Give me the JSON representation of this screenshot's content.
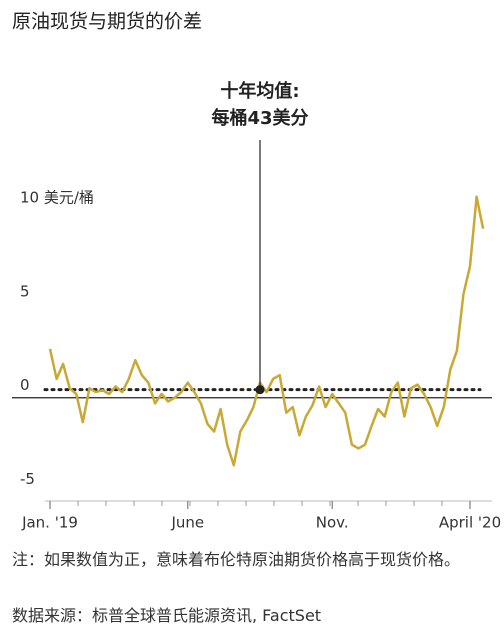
{
  "chart_data": {
    "type": "line",
    "title": "原油现货与期货的价差",
    "categories": [
      "Jan. '19",
      null,
      null,
      null,
      null,
      null,
      null,
      null,
      null,
      null,
      null,
      null,
      null,
      null,
      null,
      null,
      null,
      null,
      null,
      null,
      null,
      "June",
      null,
      null,
      null,
      null,
      null,
      null,
      null,
      null,
      null,
      null,
      null,
      null,
      null,
      null,
      null,
      null,
      null,
      null,
      null,
      null,
      null,
      "Nov.",
      null,
      null,
      null,
      null,
      null,
      null,
      null,
      null,
      null,
      null,
      null,
      null,
      null,
      null,
      null,
      null,
      null,
      null,
      null,
      null,
      "April '20",
      null,
      null
    ],
    "series": [
      {
        "color": "#c9a833",
        "values": [
          2.6,
          1.0,
          1.8,
          0.5,
          0.2,
          -1.3,
          0.5,
          0.3,
          0.4,
          0.2,
          0.6,
          0.3,
          1.0,
          2.0,
          1.2,
          0.8,
          -0.3,
          0.2,
          -0.2,
          0.0,
          0.3,
          0.8,
          0.3,
          -0.3,
          -1.4,
          -1.8,
          -0.6,
          -2.5,
          -3.6,
          -1.8,
          -1.2,
          -0.5,
          0.8,
          0.3,
          1.0,
          1.2,
          -0.8,
          -0.5,
          -2.0,
          -1.0,
          -0.4,
          0.6,
          -0.5,
          0.2,
          -0.3,
          -0.8,
          -2.5,
          -2.7,
          -2.5,
          -1.5,
          -0.6,
          -1.0,
          0.3,
          0.8,
          -1.0,
          0.5,
          0.7,
          0.2,
          -0.5,
          -1.5,
          -0.5,
          1.5,
          2.5,
          5.5,
          7.0,
          10.7,
          9.0
        ]
      }
    ],
    "ylim": [
      -5.5,
      12.5
    ],
    "yticks": [
      {
        "value": 10,
        "label": "10 美元/桶"
      },
      5,
      0,
      -5
    ],
    "reference": {
      "value": 0.43,
      "label": [
        "十年均值:",
        "每桶43美分"
      ]
    },
    "note": "注：如果数值为正，意味着布伦特原油期货价格高于现货价格。",
    "source": "数据来源：标普全球普氏能源资讯, FactSet"
  }
}
